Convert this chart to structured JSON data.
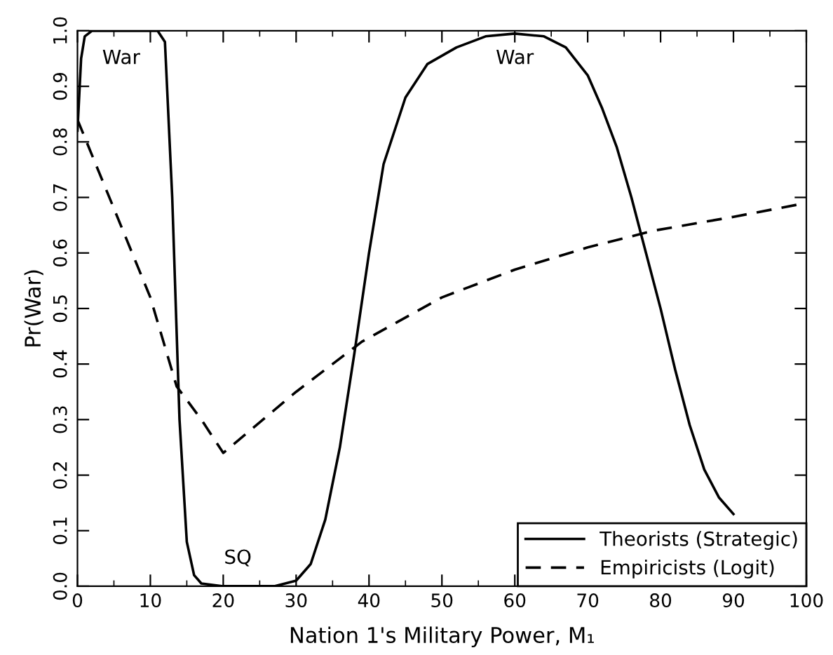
{
  "chart_data": {
    "type": "line",
    "xlabel": "Nation 1's Military Power, M₁",
    "ylabel": "Pr(War)",
    "xlim": [
      0,
      100
    ],
    "ylim": [
      0,
      1.0
    ],
    "xticks": [
      0,
      10,
      20,
      30,
      40,
      50,
      60,
      70,
      80,
      90,
      100
    ],
    "yticks": [
      {
        "value": 0,
        "label": "0.0"
      },
      0.1,
      0.2,
      0.3,
      0.4,
      0.5,
      0.6,
      0.7,
      0.8,
      0.9,
      {
        "value": 1,
        "label": "1.0"
      }
    ],
    "grid": false,
    "legend": "bottom right",
    "marker": "none",
    "series": [
      {
        "name": "Theorists (Strategic)",
        "color": "#000000",
        "line_style": "solid",
        "x": [
          0,
          0.5,
          1,
          2,
          11,
          12,
          13,
          14,
          15,
          16,
          17,
          20,
          27,
          30,
          32,
          34,
          36,
          38,
          40,
          42,
          45,
          48,
          52,
          56,
          60,
          64,
          67,
          70,
          72,
          74,
          76,
          78,
          80,
          82,
          84,
          86,
          88,
          90
        ],
        "values": [
          0.82,
          0.95,
          0.99,
          1.0,
          1.0,
          0.98,
          0.7,
          0.3,
          0.08,
          0.02,
          0.005,
          0,
          0,
          0.01,
          0.04,
          0.12,
          0.25,
          0.42,
          0.6,
          0.76,
          0.88,
          0.94,
          0.97,
          0.99,
          0.995,
          0.99,
          0.97,
          0.92,
          0.86,
          0.79,
          0.7,
          0.6,
          0.5,
          0.39,
          0.29,
          0.21,
          0.16,
          0.13
        ]
      },
      {
        "name": "Empiricists (Logit)",
        "color": "#000000",
        "line_style": "dashed",
        "x": [
          0,
          5,
          10,
          13.6,
          17,
          20,
          30,
          39,
          50,
          60,
          70,
          79,
          90,
          100
        ],
        "values": [
          0.84,
          0.68,
          0.52,
          0.36,
          0.3,
          0.24,
          0.35,
          0.44,
          0.52,
          0.57,
          0.61,
          0.64,
          0.665,
          0.69
        ]
      }
    ],
    "annotations": [
      "War",
      "SQ",
      "War"
    ]
  }
}
